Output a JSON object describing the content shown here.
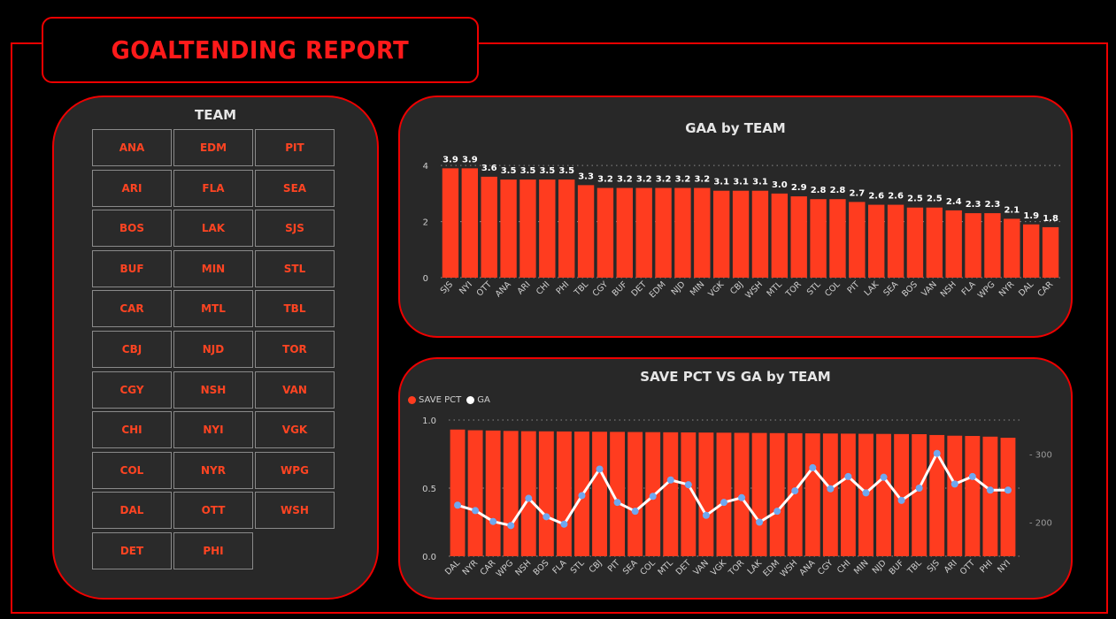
{
  "report": {
    "title": "GOALTENDING REPORT"
  },
  "slicer": {
    "title": "TEAM",
    "items": [
      "ANA",
      "EDM",
      "PIT",
      "ARI",
      "FLA",
      "SEA",
      "BOS",
      "LAK",
      "SJS",
      "BUF",
      "MIN",
      "STL",
      "CAR",
      "MTL",
      "TBL",
      "CBJ",
      "NJD",
      "TOR",
      "CGY",
      "NSH",
      "VAN",
      "CHI",
      "NYI",
      "VGK",
      "COL",
      "NYR",
      "WPG",
      "DAL",
      "OTT",
      "WSH",
      "DET",
      "PHI"
    ]
  },
  "colors": {
    "accent": "#ff3c1f",
    "border": "#ee0000",
    "panel": "#282828",
    "line": "#ffffff",
    "marker": "#6fa8f0"
  },
  "chart_data": [
    {
      "type": "bar",
      "title": "GAA by TEAM",
      "categories": [
        "SJS",
        "NYI",
        "OTT",
        "ANA",
        "ARI",
        "CHI",
        "PHI",
        "TBL",
        "CGY",
        "BUF",
        "DET",
        "EDM",
        "NJD",
        "MIN",
        "VGK",
        "CBJ",
        "WSH",
        "MTL",
        "TOR",
        "STL",
        "COL",
        "PIT",
        "LAK",
        "SEA",
        "BOS",
        "VAN",
        "NSH",
        "FLA",
        "WPG",
        "NYR",
        "DAL",
        "CAR"
      ],
      "values": [
        3.9,
        3.9,
        3.6,
        3.5,
        3.5,
        3.5,
        3.5,
        3.3,
        3.2,
        3.2,
        3.2,
        3.2,
        3.2,
        3.2,
        3.1,
        3.1,
        3.1,
        3.0,
        2.9,
        2.8,
        2.8,
        2.7,
        2.6,
        2.6,
        2.5,
        2.5,
        2.4,
        2.3,
        2.3,
        2.1,
        1.9,
        1.8
      ],
      "labels": [
        "3.9",
        "3.9",
        "3.6",
        "3.5",
        "3.5",
        "3.5",
        "3.5",
        "3.3",
        "3.2",
        "3.2",
        "3.2",
        "3.2",
        "3.2",
        "3.2",
        "3.1",
        "3.1",
        "3.1",
        "3.0",
        "2.9",
        "2.8",
        "2.8",
        "2.7",
        "2.6",
        "2.6",
        "2.5",
        "2.5",
        "2.4",
        "2.3",
        "2.3",
        "2.1",
        "1.9",
        "1.8"
      ],
      "yticks": [
        "0",
        "2",
        "4"
      ],
      "ytick_values": [
        0,
        2,
        4
      ],
      "ylim": [
        0,
        4.1
      ]
    },
    {
      "type": "bar+line",
      "title": "SAVE PCT VS GA by TEAM",
      "legend": [
        "SAVE PCT",
        "GA"
      ],
      "categories": [
        "DAL",
        "NYR",
        "CAR",
        "WPG",
        "NSH",
        "BOS",
        "FLA",
        "STL",
        "CBJ",
        "PIT",
        "SEA",
        "COL",
        "MTL",
        "DET",
        "VAN",
        "VGK",
        "TOR",
        "LAK",
        "EDM",
        "WSH",
        "ANA",
        "CGY",
        "CHI",
        "MIN",
        "NJD",
        "BUF",
        "TBL",
        "SJS",
        "ARI",
        "OTT",
        "PHI",
        "NYI"
      ],
      "series": [
        {
          "name": "SAVE PCT",
          "axis": "left",
          "values": [
            0.93,
            0.925,
            0.923,
            0.92,
            0.918,
            0.917,
            0.916,
            0.915,
            0.914,
            0.913,
            0.912,
            0.911,
            0.91,
            0.909,
            0.908,
            0.907,
            0.906,
            0.905,
            0.904,
            0.903,
            0.902,
            0.901,
            0.9,
            0.899,
            0.898,
            0.897,
            0.896,
            0.89,
            0.885,
            0.883,
            0.878,
            0.87
          ]
        },
        {
          "name": "GA",
          "axis": "right",
          "values": [
            225,
            217,
            201,
            195,
            235,
            208,
            197,
            239,
            278,
            229,
            216,
            238,
            262,
            255,
            210,
            229,
            236,
            200,
            216,
            246,
            280,
            249,
            267,
            243,
            266,
            232,
            250,
            301,
            256,
            267,
            247,
            247
          ]
        }
      ],
      "yticks_left": [
        "0.0",
        "0.5",
        "1.0"
      ],
      "ytick_values_left": [
        0,
        0.5,
        1
      ],
      "ylim_left": [
        0,
        1
      ],
      "yticks_right": [
        "200",
        "300"
      ],
      "ytick_values_right": [
        200,
        300
      ],
      "ylim_right": [
        150,
        350
      ]
    }
  ]
}
